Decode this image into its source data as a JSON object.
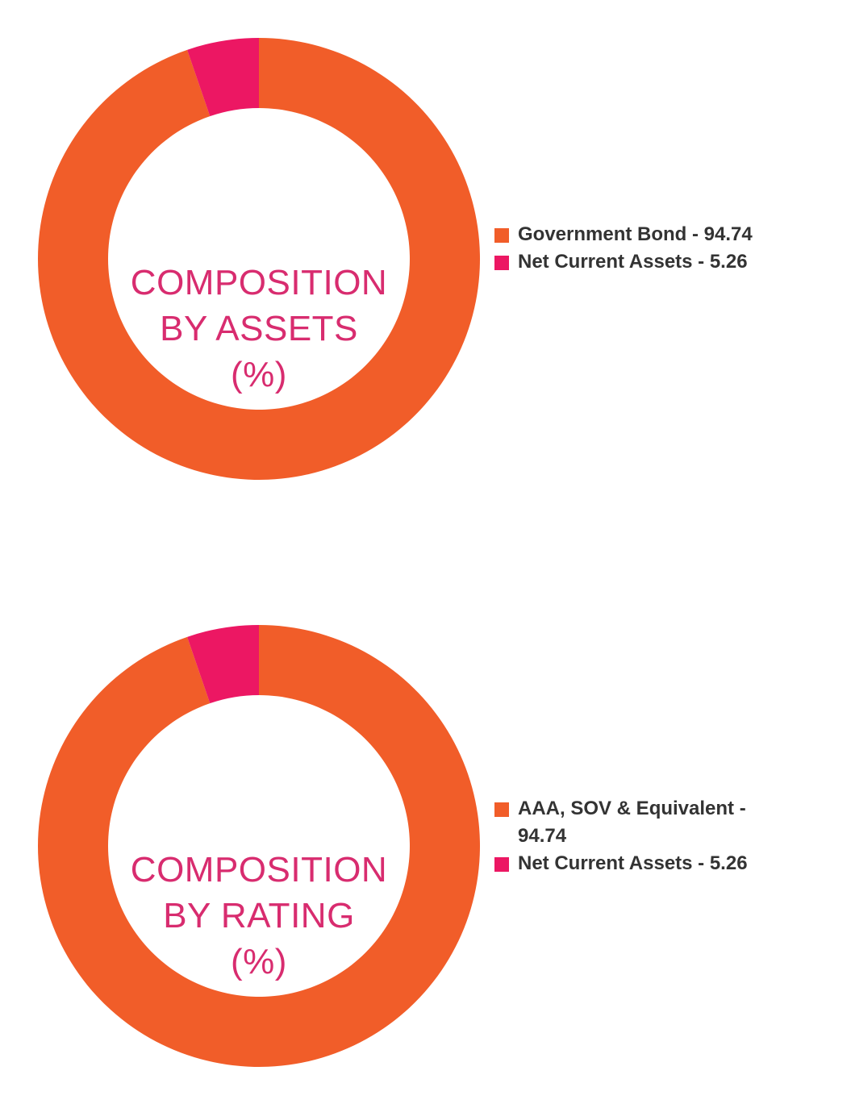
{
  "chart_data": [
    {
      "type": "pie",
      "title": "COMPOSITION BY ASSETS (%)",
      "title_lines": [
        "COMPOSITION",
        "BY ASSETS",
        "(%)"
      ],
      "categories": [
        "Government Bond",
        "Net Current Assets"
      ],
      "values": [
        94.74,
        5.26
      ],
      "colors": [
        "#F15D29",
        "#EC1763"
      ],
      "legend_labels": [
        "Government Bond - 94.74",
        "Net Current Assets - 5.26"
      ],
      "legend_position": "right",
      "donut": true
    },
    {
      "type": "pie",
      "title": "COMPOSITION BY RATING (%)",
      "title_lines": [
        "COMPOSITION",
        "BY RATING",
        "(%)"
      ],
      "categories": [
        "AAA, SOV & Equivalent",
        "Net Current Assets"
      ],
      "values": [
        94.74,
        5.26
      ],
      "colors": [
        "#F15D29",
        "#EC1763"
      ],
      "legend_labels": [
        "AAA, SOV & Equivalent - 94.74",
        "Net Current Assets - 5.26"
      ],
      "legend_position": "right",
      "donut": true
    }
  ],
  "colors": {
    "title": "#D82C6F",
    "legend_text": "#333333"
  }
}
